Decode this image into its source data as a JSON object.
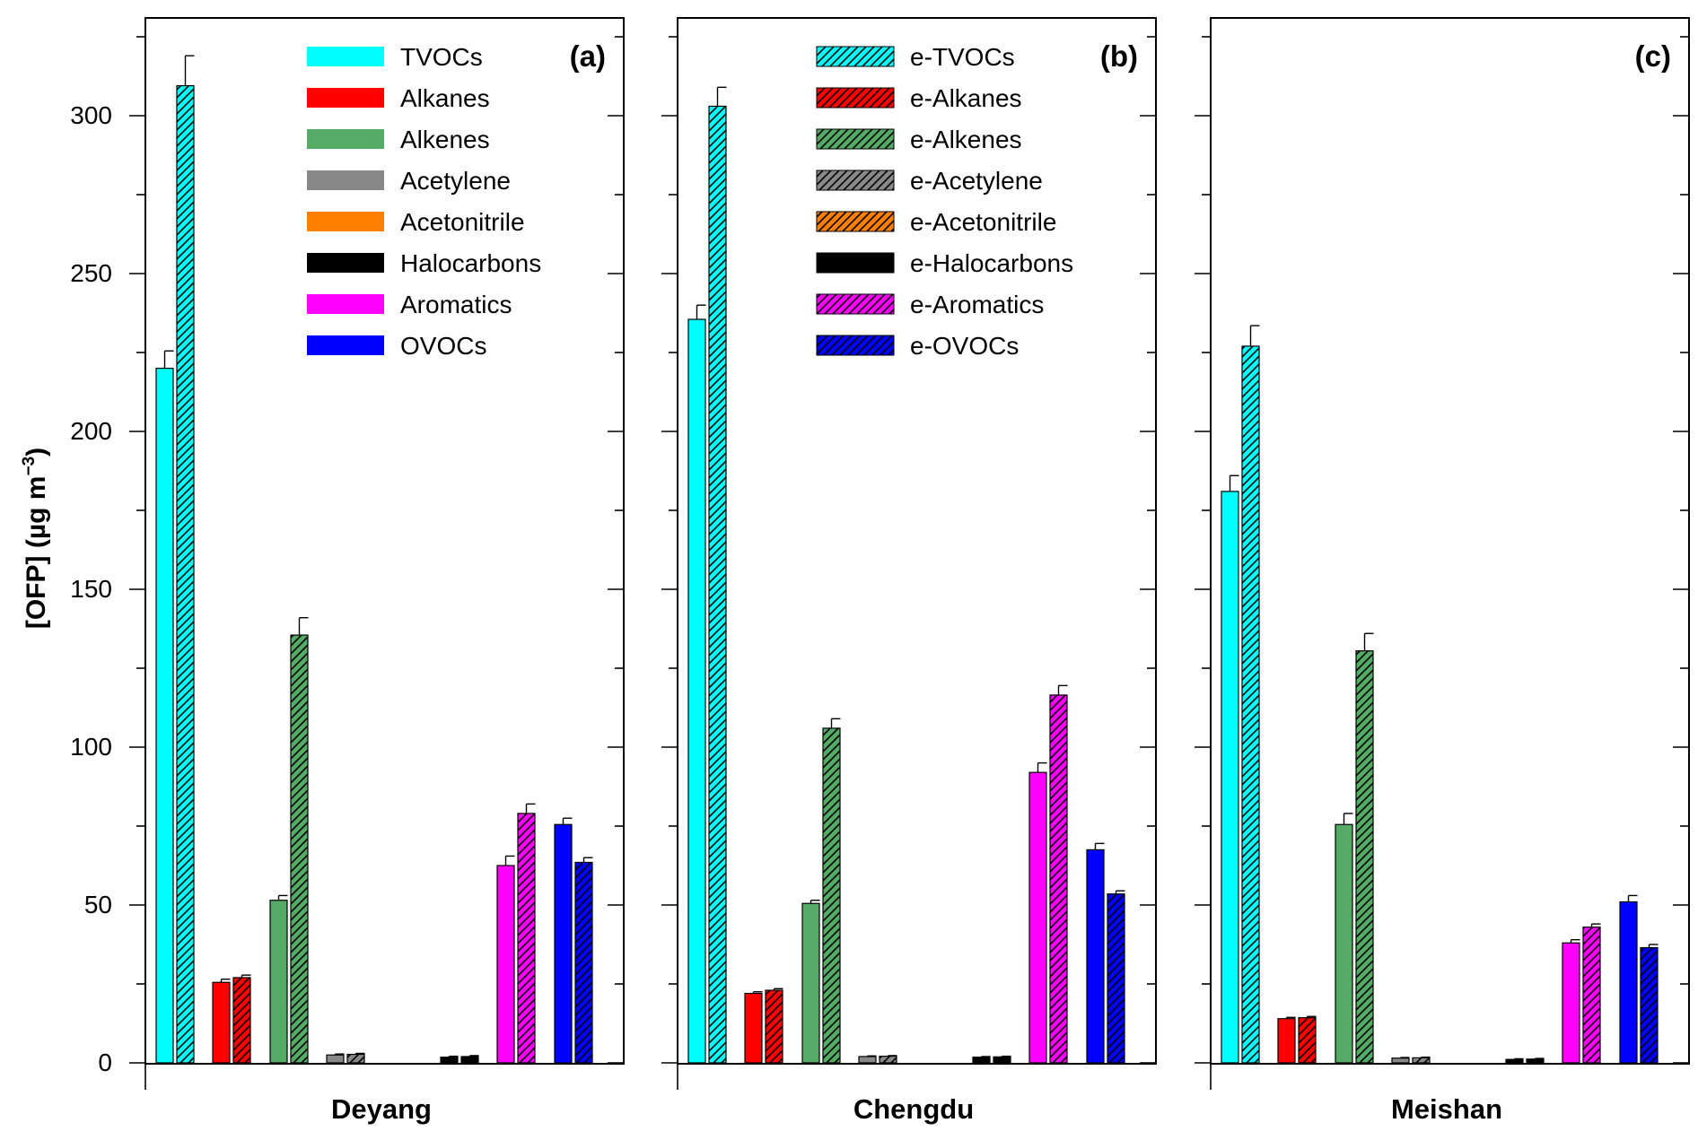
{
  "figure": {
    "ylabel_main": "[OFP] (µg m",
    "ylabel_sup": "−3",
    "ylabel_close": ")"
  },
  "colors": {
    "TVOCs": "#00ffff",
    "Alkanes": "#ff0000",
    "Alkenes": "#55aa66",
    "Acetylene": "#888888",
    "Acetonitrile": "#ff8000",
    "Halocarbons": "#000000",
    "Aromatics": "#ff00ff",
    "OVOCs": "#0000ff"
  },
  "chart_data": [
    {
      "type": "bar",
      "panel_label": "(a)",
      "xlabel": "Deyang",
      "ylim": [
        0,
        330
      ],
      "yticks": [
        0,
        50,
        100,
        150,
        200,
        250,
        300
      ],
      "categories": [
        "TVOCs",
        "Alkanes",
        "Alkenes",
        "Acetylene",
        "Acetonitrile",
        "Halocarbons",
        "Aromatics",
        "OVOCs"
      ],
      "legend": [
        "TVOCs",
        "Alkanes",
        "Alkenes",
        "Acetylene",
        "Acetonitrile",
        "Halocarbons",
        "Aromatics",
        "OVOCs"
      ],
      "series": [
        {
          "hatched": false,
          "values": [
            220,
            25.5,
            51.5,
            2.5,
            0,
            1.8,
            62.5,
            75.5
          ],
          "errors": [
            5.5,
            1,
            1.5,
            0.3,
            0,
            0.3,
            3,
            2
          ]
        },
        {
          "hatched": true,
          "values": [
            309.5,
            27,
            135.5,
            2.7,
            0,
            2,
            79,
            63.5
          ],
          "errors": [
            9.5,
            0.8,
            5.5,
            0.3,
            0,
            0.3,
            3,
            1.5
          ]
        }
      ]
    },
    {
      "type": "bar",
      "panel_label": "(b)",
      "xlabel": "Chengdu",
      "ylim": [
        0,
        330
      ],
      "yticks": [
        0,
        50,
        100,
        150,
        200,
        250,
        300
      ],
      "categories": [
        "TVOCs",
        "Alkanes",
        "Alkenes",
        "Acetylene",
        "Acetonitrile",
        "Halocarbons",
        "Aromatics",
        "OVOCs"
      ],
      "legend": [
        "e-TVOCs",
        "e-Alkanes",
        "e-Alkenes",
        "e-Acetylene",
        "e-Acetonitrile",
        "e-Halocarbons",
        "e-Aromatics",
        "e-OVOCs"
      ],
      "series": [
        {
          "hatched": false,
          "values": [
            235.5,
            22,
            50.5,
            2,
            0,
            1.8,
            92,
            67.5
          ],
          "errors": [
            4.5,
            0.5,
            1,
            0.2,
            0,
            0.2,
            3,
            2
          ]
        },
        {
          "hatched": true,
          "values": [
            303,
            23,
            106,
            2.1,
            0,
            1.9,
            116.5,
            53.5
          ],
          "errors": [
            6,
            0.5,
            3,
            0.2,
            0,
            0.2,
            3,
            1
          ]
        }
      ]
    },
    {
      "type": "bar",
      "panel_label": "(c)",
      "xlabel": "Meishan",
      "ylim": [
        0,
        330
      ],
      "yticks": [
        0,
        50,
        100,
        150,
        200,
        250,
        300
      ],
      "categories": [
        "TVOCs",
        "Alkanes",
        "Alkenes",
        "Acetylene",
        "Acetonitrile",
        "Halocarbons",
        "Aromatics",
        "OVOCs"
      ],
      "legend": [],
      "series": [
        {
          "hatched": false,
          "values": [
            181,
            14,
            75.5,
            1.5,
            0,
            1.1,
            38,
            51
          ],
          "errors": [
            5,
            0.4,
            3.5,
            0.2,
            0,
            0.2,
            1,
            2
          ]
        },
        {
          "hatched": true,
          "values": [
            227,
            14.3,
            130.5,
            1.6,
            0,
            1.2,
            43,
            36.5
          ],
          "errors": [
            6.5,
            0.4,
            5.5,
            0.2,
            0,
            0.2,
            1,
            1
          ]
        }
      ]
    }
  ]
}
